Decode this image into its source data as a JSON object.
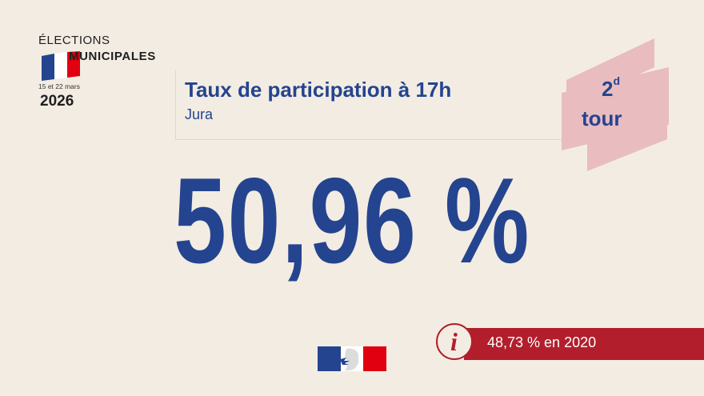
{
  "brand": {
    "elections": "ÉLECTIONS",
    "municipales": "MUNICIPALES",
    "dates": "15 et 22 mars",
    "year": "2026"
  },
  "heading": {
    "title": "Taux de participation à 17h",
    "department": "Jura"
  },
  "tour": {
    "number": "2",
    "superscript": "d",
    "word": "tour"
  },
  "main_value": "50,96 %",
  "info": {
    "icon": "info-icon",
    "text": "48,73 % en 2020"
  },
  "colors": {
    "background": "#f3ece3",
    "blue": "#24448f",
    "red": "#b21e2b",
    "badge_pink": "#e9bcc0"
  }
}
